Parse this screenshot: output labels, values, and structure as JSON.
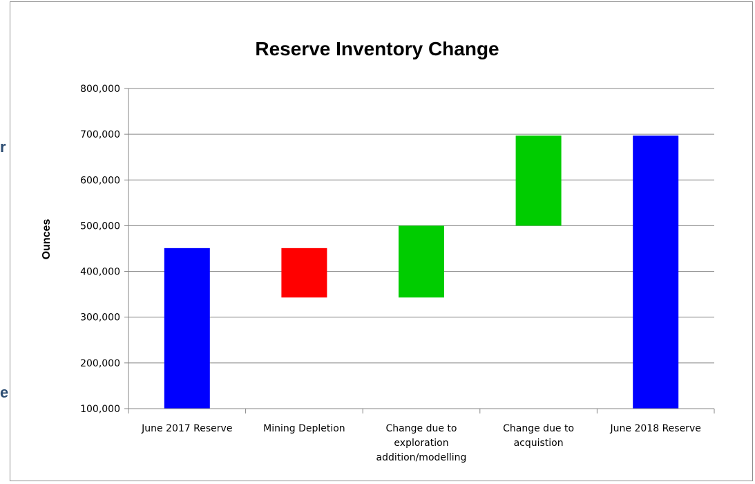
{
  "side_fragments": [
    "r",
    "e"
  ],
  "chart_data": {
    "type": "bar",
    "subtype": "waterfall",
    "title": "Reserve Inventory Change",
    "xlabel": "",
    "ylabel": "Ounces",
    "ylim": [
      100000,
      800000
    ],
    "yticks": [
      100000,
      200000,
      300000,
      400000,
      500000,
      600000,
      700000,
      800000
    ],
    "ytick_labels": [
      "100,000",
      "200,000",
      "300,000",
      "400,000",
      "500,000",
      "600,000",
      "700,000",
      "800,000"
    ],
    "grid": true,
    "legend": "none",
    "categories": [
      [
        "June 2017 Reserve"
      ],
      [
        "Mining Depletion"
      ],
      [
        "Change due to",
        "exploration",
        "addition/modelling"
      ],
      [
        "Change due to",
        "acquistion"
      ],
      [
        "June 2018 Reserve"
      ]
    ],
    "bars": [
      {
        "bottom": 100000,
        "top": 451000,
        "color": "#0000ff"
      },
      {
        "bottom": 343000,
        "top": 451000,
        "color": "#ff0000"
      },
      {
        "bottom": 343000,
        "top": 500000,
        "color": "#00cc00"
      },
      {
        "bottom": 500000,
        "top": 697000,
        "color": "#00cc00"
      },
      {
        "bottom": 100000,
        "top": 697000,
        "color": "#0000ff"
      }
    ]
  }
}
